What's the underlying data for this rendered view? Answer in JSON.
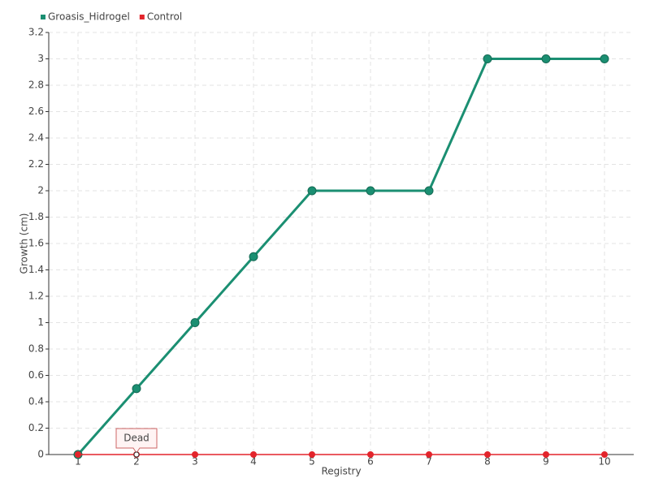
{
  "chart_data": {
    "type": "line",
    "x_label": "Registry",
    "y_label": "Growth (cm)",
    "categories": [
      "1",
      "2",
      "3",
      "4",
      "5",
      "6",
      "7",
      "8",
      "9",
      "10"
    ],
    "series": [
      {
        "name": "Groasis_Hidrogel",
        "color": "#1b8f72",
        "values": [
          0,
          0.5,
          1,
          1.5,
          2,
          2,
          2,
          3,
          3,
          3
        ]
      },
      {
        "name": "Control",
        "color": "#e3242b",
        "values": [
          0,
          0,
          0,
          0,
          0,
          0,
          0,
          0,
          0,
          0
        ]
      }
    ],
    "annotations": [
      {
        "text": "Dead"
      }
    ],
    "ylim": [
      0,
      3.2
    ],
    "yticks": [
      0,
      0.2,
      0.4,
      0.6,
      0.8,
      1,
      1.2,
      1.4,
      1.6,
      1.8,
      2,
      2.2,
      2.4,
      2.6,
      2.8,
      3,
      3.2
    ],
    "grid": true,
    "legend": "top-left"
  }
}
